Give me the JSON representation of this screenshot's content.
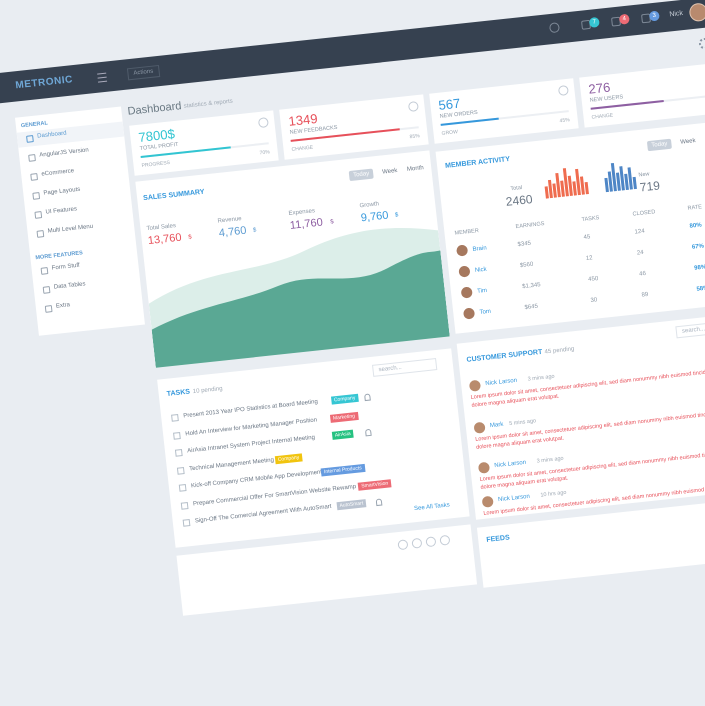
{
  "header": {
    "logo": "METRONIC",
    "actions": "Actions",
    "badges": [
      "7",
      "4",
      "3"
    ],
    "user": "Nick"
  },
  "page": {
    "title": "Dashboard",
    "subtitle": "statistics & reports"
  },
  "sidebar": {
    "sections": [
      {
        "heading": "GENERAL",
        "items": [
          "Dashboard",
          "AngularJS Version",
          "eCommerce",
          "Page Layouts",
          "UI Features",
          "Multi Level Menu"
        ]
      },
      {
        "heading": "MORE FEATURES",
        "items": [
          "Form Stuff",
          "Data Tables",
          "Extra"
        ]
      }
    ]
  },
  "stats": [
    {
      "value": "7800$",
      "label": "TOTAL PROFIT",
      "note": "PROGRESS",
      "progress": 70,
      "progress_label": "70%",
      "color": "#32c5d2"
    },
    {
      "value": "1349",
      "label": "NEW FEEDBACKS",
      "note": "CHANGE",
      "progress": 85,
      "progress_label": "85%",
      "color": "#e7505a"
    },
    {
      "value": "567",
      "label": "NEW ORDERS",
      "note": "GROW",
      "progress": 45,
      "progress_label": "45%",
      "color": "#3598dc"
    },
    {
      "value": "276",
      "label": "NEW USERS",
      "note": "CHANGE",
      "progress": 57,
      "progress_label": "57%",
      "color": "#8e5fa2"
    }
  ],
  "sales_summary": {
    "title": "SALES SUMMARY",
    "tabs": [
      "Today",
      "Week",
      "Month"
    ],
    "metrics": [
      {
        "label": "Total Sales",
        "value": "13,760",
        "unit": "$",
        "color": "#e7505a"
      },
      {
        "label": "Revenue",
        "value": "4,760",
        "unit": "$",
        "color": "#5c9bd1"
      },
      {
        "label": "Expenses",
        "value": "11,760",
        "unit": "$",
        "color": "#8e5fa2"
      },
      {
        "label": "Growth",
        "value": "9,760",
        "unit": "$",
        "color": "#3598dc"
      }
    ]
  },
  "member_activity": {
    "title": "MEMBER ACTIVITY",
    "tabs": [
      "Today",
      "Week",
      "Month"
    ],
    "total_label": "Total",
    "total": "2460",
    "new_label": "New",
    "new": "719",
    "columns": [
      "MEMBER",
      "EARNINGS",
      "TASKS",
      "CLOSED",
      "RATE"
    ],
    "rows": [
      [
        "Brain",
        "$345",
        "45",
        "124",
        "80%"
      ],
      [
        "Nick",
        "$560",
        "12",
        "24",
        "67%"
      ],
      [
        "Tim",
        "$1,345",
        "450",
        "46",
        "98%"
      ],
      [
        "Tom",
        "$645",
        "30",
        "89",
        "58%"
      ]
    ]
  },
  "tasks": {
    "title": "TASKS",
    "pending": "10 pending",
    "search": "search...",
    "footer": "See All Tasks",
    "items": [
      {
        "text": "Present 2013 Year IPO Statistics at Board Meeting",
        "tag": "Company",
        "tag_color": "#36c6d3",
        "bell": true
      },
      {
        "text": "Hold An Interview for Marketing Manager Position",
        "tag": "Marketing",
        "tag_color": "#ed6b75"
      },
      {
        "text": "AirAsia Intranet System Project Internal Meeting",
        "tag": "AirAsia",
        "tag_color": "#26c281",
        "bell": true
      },
      {
        "text": "Technical Management Meeting",
        "tag": "Company",
        "tag_color": "#f1c40f"
      },
      {
        "text": "Kick-off Company CRM Mobile App Development",
        "tag": "Internal Products",
        "tag_color": "#659be0"
      },
      {
        "text": "Prepare Commercial Offer For SmartVision Website Rewamp",
        "tag": "SmartVision",
        "tag_color": "#ed6b75"
      },
      {
        "text": "Sign-Off The Comercial Agreement With AutoSmart",
        "tag": "AutoSmart",
        "tag_color": "#bac3d0",
        "bell": true
      }
    ]
  },
  "customer_support": {
    "title": "CUSTOMER SUPPORT",
    "pending": "45 pending",
    "search": "search...",
    "messages": [
      {
        "name": "Nick Larson",
        "time": "3 mins ago",
        "text": "Lorem ipsum dolor sit amet, consectetuer adipiscing elit, sed diam nonummy nibh euismod tincidunt ut laoreet dolore magna aliquam erat volutpat."
      },
      {
        "name": "Mark",
        "time": "5 mins ago",
        "text": "Lorem ipsum dolor sit amet, consectetuer adipiscing elit, sed diam nonummy nibh euismod tincidunt ut laoreet dolore magna aliquam erat volutpat."
      },
      {
        "name": "Nick Larson",
        "time": "3 mins ago",
        "text": "Lorem ipsum dolor sit amet, consectetuer adipiscing elit, sed diam nonummy nibh euismod tincidunt ut laoreet dolore magna aliquam erat volutpat."
      },
      {
        "name": "Nick Larson",
        "time": "10 hrs ago",
        "text": "Lorem ipsum dolor sit amet, consectetuer adipiscing elit, sed diam nonummy nibh euismod tincidunt ut laoreet dolore magna aliquam erat volutpat."
      }
    ]
  },
  "feeds": {
    "title": "FEEDS"
  }
}
